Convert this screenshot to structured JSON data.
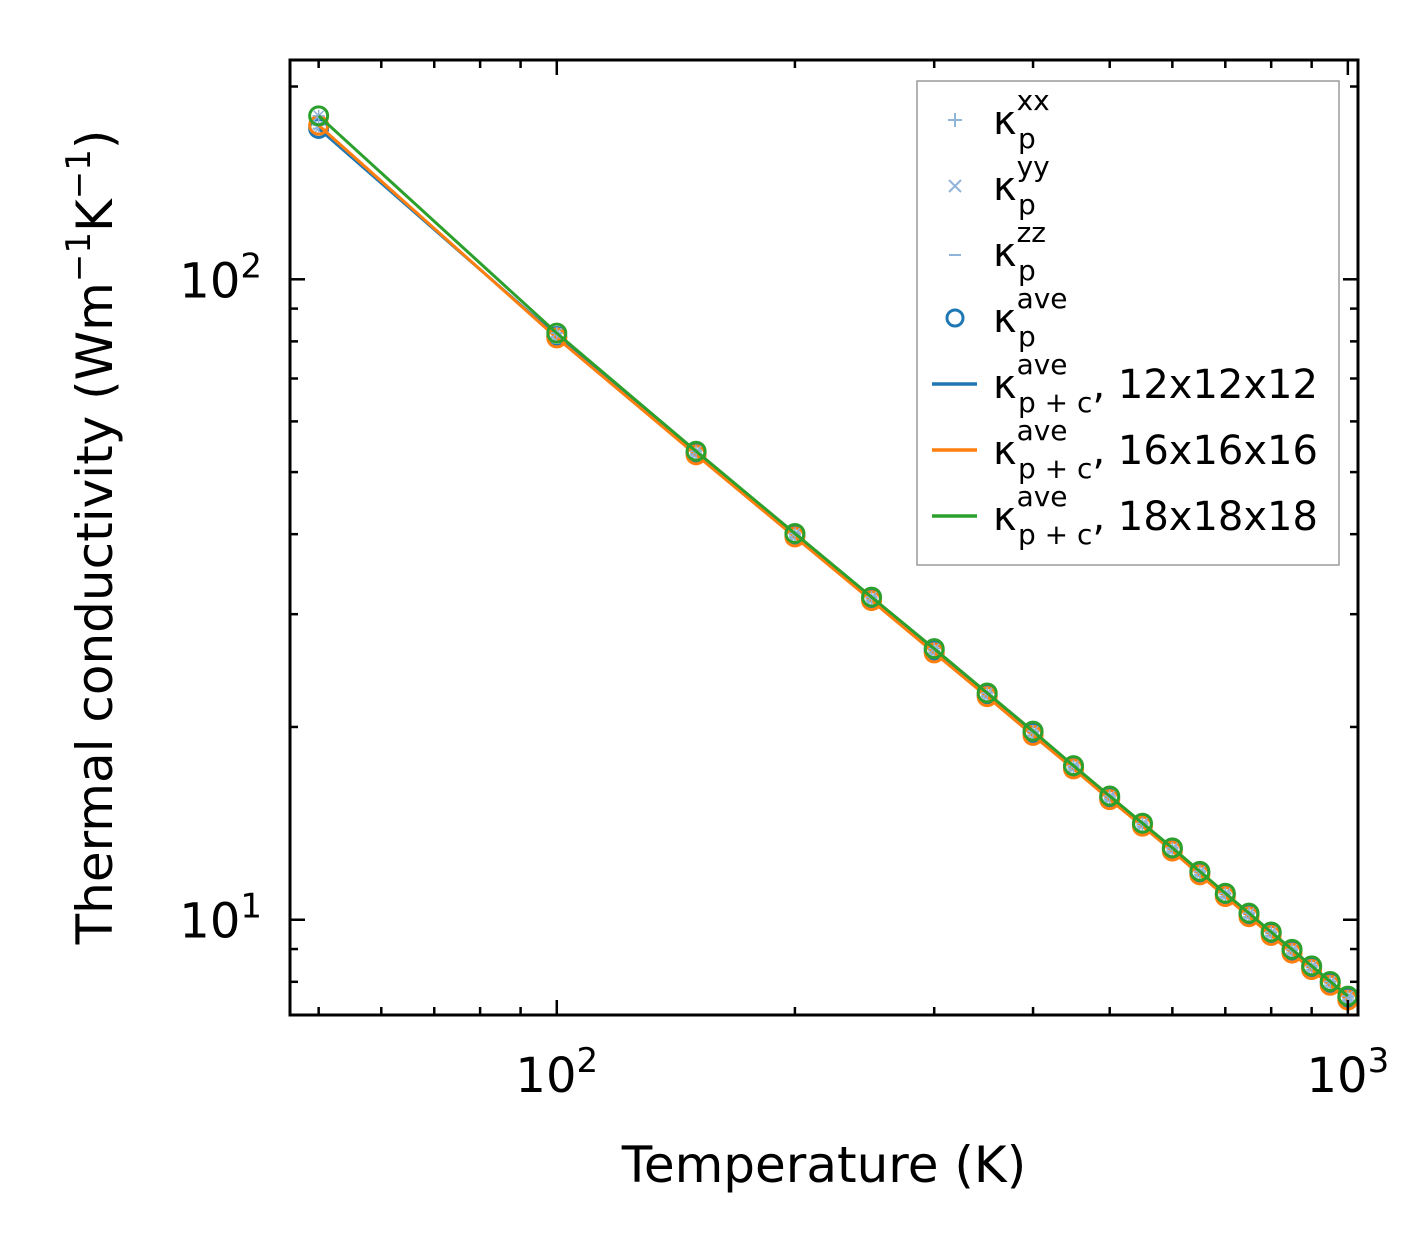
{
  "chart_data": {
    "type": "line",
    "scale": {
      "x": "log",
      "y": "log"
    },
    "xlabel": "Temperature (K)",
    "ylabel": "Thermal conductivity (Wm",
    "ylabel_sup1": "−1",
    "ylabel_mid": "K",
    "ylabel_sup2": "−1",
    "ylabel_end": ")",
    "xlim": [
      46,
      1030
    ],
    "ylim": [
      7.1,
      220
    ],
    "x_major_ticks": [
      {
        "value": 100,
        "base": "10",
        "exp": "2"
      },
      {
        "value": 1000,
        "base": "10",
        "exp": "3"
      }
    ],
    "y_major_ticks": [
      {
        "value": 10,
        "base": "10",
        "exp": "1"
      },
      {
        "value": 100,
        "base": "10",
        "exp": "2"
      }
    ],
    "x": [
      50,
      100,
      150,
      200,
      250,
      300,
      350,
      400,
      450,
      500,
      550,
      600,
      650,
      700,
      750,
      800,
      850,
      900,
      950,
      1000
    ],
    "series": [
      {
        "name": "κ_p+c^ave, 12x12x12",
        "color": "#1f77b4",
        "values": [
          172,
          81.4,
          53.5,
          39.9,
          31.7,
          26.3,
          22.4,
          19.6,
          17.3,
          15.5,
          14.1,
          12.9,
          11.85,
          10.96,
          10.2,
          9.53,
          8.95,
          8.43,
          7.97,
          7.55
        ]
      },
      {
        "name": "κ_p+c^ave, 16x16x16",
        "color": "#ff7f0e",
        "values": [
          174,
          81.0,
          53.2,
          39.6,
          31.5,
          26.1,
          22.3,
          19.4,
          17.2,
          15.4,
          14.0,
          12.8,
          11.75,
          10.87,
          10.11,
          9.45,
          8.87,
          8.36,
          7.9,
          7.49
        ]
      },
      {
        "name": "κ_p+c^ave, 18x18x18",
        "color": "#2ca02c",
        "values": [
          180,
          82.4,
          53.9,
          40.1,
          31.9,
          26.5,
          22.6,
          19.7,
          17.4,
          15.6,
          14.15,
          12.95,
          11.9,
          11.0,
          10.24,
          9.57,
          8.99,
          8.47,
          8.01,
          7.6
        ]
      }
    ],
    "legend": {
      "placement": "top-right",
      "entries": [
        {
          "symbol": "κ",
          "sub": "p",
          "sup": "xx",
          "suffix": "",
          "marker": "plus",
          "color": "#8fb3d9"
        },
        {
          "symbol": "κ",
          "sub": "p",
          "sup": "yy",
          "suffix": "",
          "marker": "x",
          "color": "#8fb3d9"
        },
        {
          "symbol": "κ",
          "sub": "p",
          "sup": "zz",
          "suffix": "",
          "marker": "dash",
          "color": "#8fb3d9"
        },
        {
          "symbol": "κ",
          "sub": "p",
          "sup": "ave",
          "suffix": "",
          "marker": "circle",
          "color": "#1f77b4"
        },
        {
          "symbol": "κ",
          "sub": "p + c",
          "sup": "ave",
          "suffix": ", 12x12x12",
          "marker": "line",
          "color": "#1f77b4"
        },
        {
          "symbol": "κ",
          "sub": "p + c",
          "sup": "ave",
          "suffix": ", 16x16x16",
          "marker": "line",
          "color": "#ff7f0e"
        },
        {
          "symbol": "κ",
          "sub": "p + c",
          "sup": "ave",
          "suffix": ", 18x18x18",
          "marker": "line",
          "color": "#2ca02c"
        }
      ]
    }
  }
}
